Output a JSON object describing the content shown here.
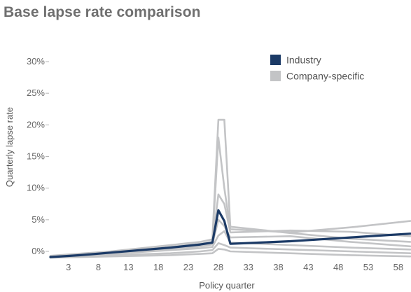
{
  "title": "Base lapse rate comparison",
  "chart_data": {
    "type": "line",
    "title": "Base lapse rate comparison",
    "xlabel": "Policy quarter",
    "ylabel": "Quarterly lapse rate",
    "x_ticks": [
      "3",
      "8",
      "13",
      "18",
      "23",
      "28",
      "33",
      "38",
      "43",
      "48",
      "53",
      "58"
    ],
    "y_ticks": [
      "0%",
      "5%",
      "10%",
      "15%",
      "20%",
      "25%",
      "30%"
    ],
    "xlim": [
      0,
      60
    ],
    "ylim": [
      0,
      30
    ],
    "grid": false,
    "legend_position": "top-right",
    "colors": {
      "industry": "#1b3a66",
      "company": "#c3c4c6"
    },
    "series": [
      {
        "name": "Industry",
        "color": "#1b3a66",
        "x": [
          0,
          5,
          10,
          15,
          20,
          25,
          27,
          28,
          29,
          30,
          35,
          40,
          45,
          50,
          55,
          60
        ],
        "values": [
          -0.9,
          -0.6,
          -0.2,
          0.2,
          0.6,
          1.1,
          1.4,
          6.5,
          4.8,
          1.2,
          1.4,
          1.6,
          1.9,
          2.2,
          2.5,
          2.8
        ]
      },
      {
        "name": "Company-specific",
        "color": "#c3c4c6",
        "x": [
          0,
          10,
          20,
          25,
          27,
          28,
          29,
          30,
          40,
          50,
          60
        ],
        "values": [
          -0.7,
          0.0,
          1.0,
          1.5,
          1.9,
          20.8,
          20.8,
          3.9,
          2.9,
          2.0,
          1.5
        ]
      },
      {
        "name": "",
        "color": "#c3c4c6",
        "x": [
          0,
          10,
          20,
          25,
          27,
          28,
          29,
          30,
          40,
          50,
          60
        ],
        "values": [
          -0.8,
          -0.2,
          0.7,
          1.2,
          1.5,
          18.0,
          10.0,
          3.5,
          3.0,
          3.8,
          4.8
        ]
      },
      {
        "name": "",
        "color": "#c3c4c6",
        "x": [
          0,
          10,
          20,
          25,
          27,
          28,
          29,
          30,
          40,
          50,
          60
        ],
        "values": [
          -0.9,
          -0.3,
          0.5,
          1.0,
          1.3,
          9.0,
          7.5,
          3.0,
          3.3,
          3.1,
          2.4
        ]
      },
      {
        "name": "",
        "color": "#c3c4c6",
        "x": [
          0,
          10,
          20,
          25,
          27,
          28,
          29,
          30,
          40,
          50,
          60
        ],
        "values": [
          -0.9,
          -0.4,
          0.4,
          0.8,
          1.1,
          5.0,
          4.0,
          2.2,
          2.4,
          1.5,
          0.8
        ]
      },
      {
        "name": "",
        "color": "#c3c4c6",
        "x": [
          0,
          10,
          20,
          25,
          27,
          28,
          29,
          30,
          40,
          50,
          60
        ],
        "values": [
          -0.8,
          -0.4,
          0.2,
          0.5,
          0.7,
          2.5,
          3.2,
          1.4,
          1.0,
          0.6,
          0.3
        ]
      },
      {
        "name": "",
        "color": "#c3c4c6",
        "x": [
          0,
          10,
          20,
          25,
          27,
          28,
          29,
          30,
          40,
          50,
          60
        ],
        "values": [
          -0.9,
          -0.6,
          -0.3,
          0.0,
          0.2,
          1.3,
          1.0,
          0.6,
          0.3,
          0.0,
          -0.3
        ]
      },
      {
        "name": "",
        "color": "#c3c4c6",
        "x": [
          0,
          10,
          20,
          25,
          27,
          28,
          29,
          30,
          40,
          50,
          60
        ],
        "values": [
          -1.0,
          -0.8,
          -0.6,
          -0.4,
          -0.3,
          0.4,
          0.3,
          0.0,
          -0.3,
          -0.6,
          -0.8
        ]
      }
    ]
  }
}
